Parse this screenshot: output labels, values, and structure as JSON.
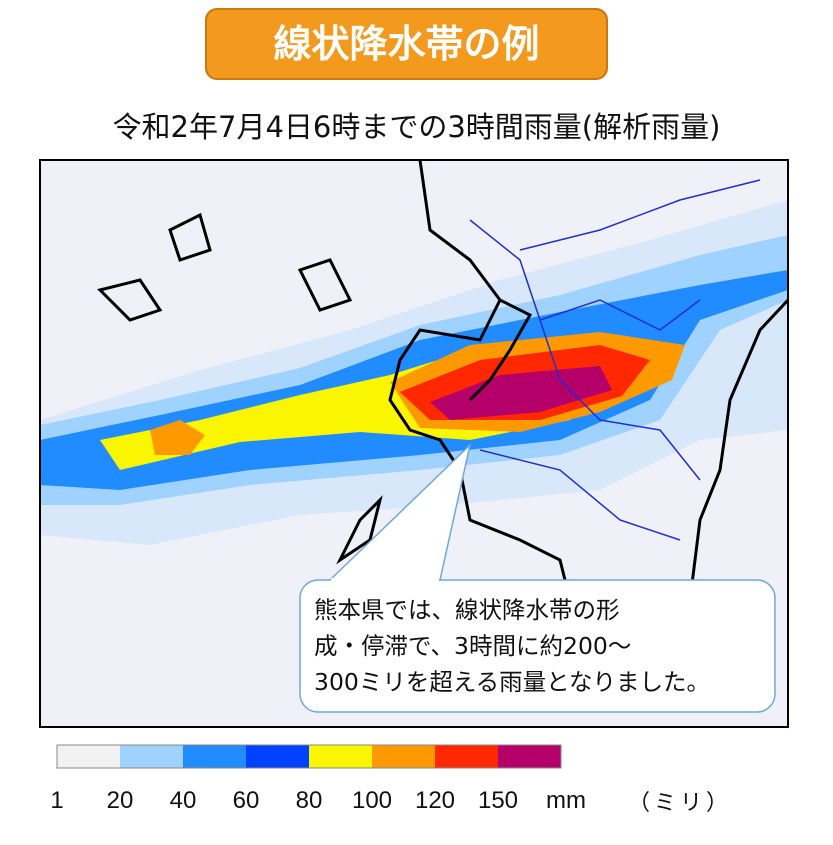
{
  "header": {
    "title": "線状降水帯の例",
    "subtitle": "令和2年7月4日6時までの3時間雨量(解析雨量)"
  },
  "callout": {
    "lines": [
      "熊本県では、線状降水帯の形",
      "成・停滞で、3時間に約200～",
      "300ミリを超える雨量となりました。"
    ]
  },
  "legend": {
    "colors": [
      "#f2f2f2",
      "#a0d2ff",
      "#218cff",
      "#0041ff",
      "#faf500",
      "#ff9900",
      "#ff2800",
      "#b40068"
    ],
    "labels": [
      "1",
      "20",
      "40",
      "60",
      "80",
      "100",
      "120",
      "150"
    ],
    "unit": "mm",
    "unit_note": "（ミリ）"
  }
}
